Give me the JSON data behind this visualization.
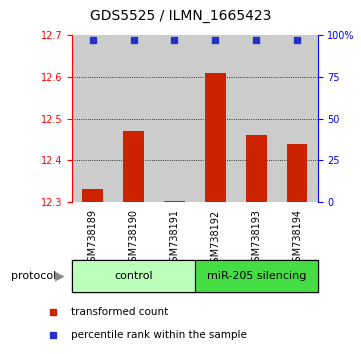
{
  "title": "GDS5525 / ILMN_1665423",
  "samples": [
    "GSM738189",
    "GSM738190",
    "GSM738191",
    "GSM738192",
    "GSM738193",
    "GSM738194"
  ],
  "bar_values": [
    12.33,
    12.47,
    12.302,
    12.61,
    12.46,
    12.44
  ],
  "percentile_values": [
    97,
    97,
    97,
    97,
    97,
    97
  ],
  "ylim_left": [
    12.3,
    12.7
  ],
  "ylim_right": [
    0,
    100
  ],
  "yticks_left": [
    12.3,
    12.4,
    12.5,
    12.6,
    12.7
  ],
  "yticks_right": [
    0,
    25,
    50,
    75,
    100
  ],
  "bar_color": "#cc2200",
  "dot_color": "#2233cc",
  "control_color": "#bbffbb",
  "silencing_color": "#44dd44",
  "sample_bg_color": "#cccccc",
  "control_samples": 3,
  "silencing_samples": 3,
  "control_label": "control",
  "silencing_label": "miR-205 silencing",
  "legend_red_label": "transformed count",
  "legend_blue_label": "percentile rank within the sample",
  "protocol_label": "protocol",
  "bar_width": 0.5,
  "grid_lines": [
    12.4,
    12.5,
    12.6
  ],
  "title_fontsize": 10,
  "tick_fontsize": 7,
  "legend_fontsize": 7.5,
  "protocol_fontsize": 8
}
